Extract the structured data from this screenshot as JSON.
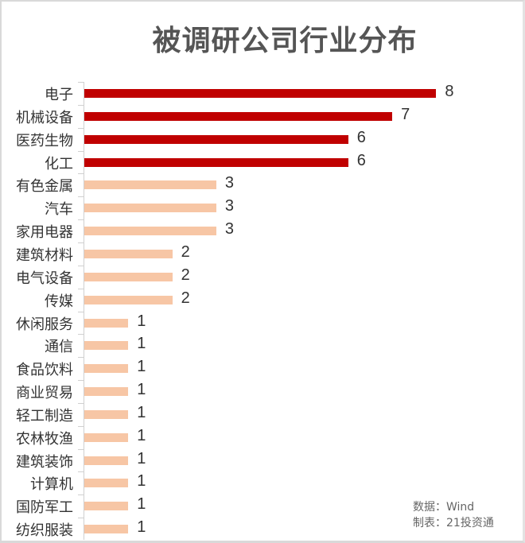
{
  "title": "被调研公司行业分布",
  "colors": {
    "highlight": "#c00000",
    "normal": "#f7c6a5",
    "text": "#333333",
    "title": "#555555"
  },
  "source": {
    "data_line": "数据：Wind",
    "made_by_line": "制表：21投资通"
  },
  "chart_data": {
    "type": "bar",
    "orientation": "horizontal",
    "title": "被调研公司行业分布",
    "xlabel": "",
    "ylabel": "",
    "categories": [
      "电子",
      "机械设备",
      "医药生物",
      "化工",
      "有色金属",
      "汽车",
      "家用电器",
      "建筑材料",
      "电气设备",
      "传媒",
      "休闲服务",
      "通信",
      "食品饮料",
      "商业贸易",
      "轻工制造",
      "农林牧渔",
      "建筑装饰",
      "计算机",
      "国防军工",
      "纺织服装"
    ],
    "values": [
      8,
      7,
      6,
      6,
      3,
      3,
      3,
      2,
      2,
      2,
      1,
      1,
      1,
      1,
      1,
      1,
      1,
      1,
      1,
      1
    ],
    "highlighted": [
      true,
      true,
      true,
      true,
      false,
      false,
      false,
      false,
      false,
      false,
      false,
      false,
      false,
      false,
      false,
      false,
      false,
      false,
      false,
      false
    ],
    "data_labels": true,
    "grid": false,
    "legend": null,
    "xlim": [
      0,
      8
    ],
    "annotations": [
      "数据：Wind",
      "制表：21投资通"
    ]
  }
}
